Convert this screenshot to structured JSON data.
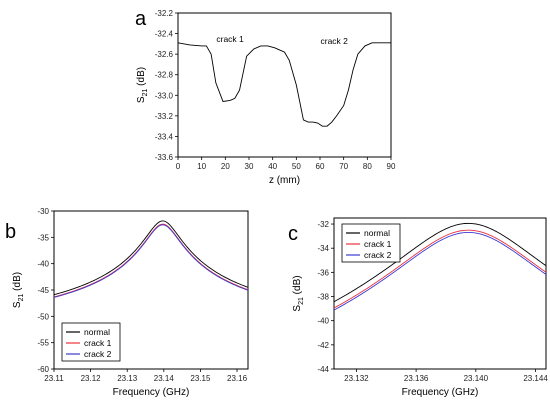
{
  "colors": {
    "normal": "#000000",
    "crack1": "#e8323c",
    "crack2": "#3b3bd6"
  },
  "chart_data": [
    {
      "id": "a",
      "type": "line",
      "panel_label": "a",
      "xlabel": "z (mm)",
      "ylabel_main": "S",
      "ylabel_sub": "21",
      "ylabel_unit": "(dB)",
      "xlim": [
        0,
        90
      ],
      "ylim": [
        -33.6,
        -32.2
      ],
      "xticks": [
        0,
        10,
        20,
        30,
        40,
        50,
        60,
        70,
        80,
        90
      ],
      "yticks": [
        -32.2,
        -32.4,
        -32.6,
        -32.8,
        -33.0,
        -33.2,
        -33.4,
        -33.6
      ],
      "ytick_labels": [
        "-32.2",
        "-32.4",
        "-32.6",
        "-32.8",
        "-33.0",
        "-33.2",
        "-33.4",
        "-33.6"
      ],
      "annotations": [
        {
          "text": "crack 1",
          "x": 22,
          "y": -32.48
        },
        {
          "text": "crack 2",
          "x": 66,
          "y": -32.5
        }
      ],
      "series": [
        {
          "color": "#000000",
          "x": [
            0,
            5,
            10,
            12,
            14,
            16,
            19,
            22,
            24,
            26,
            29,
            32,
            35,
            38,
            41,
            43,
            45,
            47,
            50,
            53,
            55,
            57,
            59,
            61,
            63,
            65,
            67,
            70,
            72,
            74,
            76,
            79,
            82,
            85,
            88,
            90
          ],
          "y": [
            -32.49,
            -32.51,
            -32.52,
            -32.52,
            -32.6,
            -32.88,
            -33.06,
            -33.05,
            -33.03,
            -32.95,
            -32.62,
            -32.55,
            -32.52,
            -32.52,
            -32.54,
            -32.56,
            -32.58,
            -32.66,
            -32.9,
            -33.24,
            -33.26,
            -33.26,
            -33.27,
            -33.3,
            -33.3,
            -33.26,
            -33.2,
            -33.1,
            -32.95,
            -32.75,
            -32.6,
            -32.52,
            -32.49,
            -32.49,
            -32.49,
            -32.49
          ]
        }
      ]
    },
    {
      "id": "b",
      "type": "line",
      "panel_label": "b",
      "xlabel": "Frequency (GHz)",
      "ylabel_main": "S",
      "ylabel_sub": "21",
      "ylabel_unit": "(dB)",
      "xlim": [
        23.11,
        23.163
      ],
      "ylim": [
        -60,
        -30
      ],
      "xticks": [
        23.11,
        23.12,
        23.13,
        23.14,
        23.15,
        23.16
      ],
      "xtick_labels": [
        "23.11",
        "23.12",
        "23.13",
        "23.14",
        "23.15",
        "23.16"
      ],
      "yticks": [
        -30,
        -35,
        -40,
        -45,
        -50,
        -55,
        -60
      ],
      "ytick_labels": [
        "-30",
        "-35",
        "-40",
        "-45",
        "-50",
        "-55",
        "-60"
      ],
      "legend_position": "bottom-left",
      "series": [
        {
          "name": "normal",
          "color": "#000000",
          "peak": -32.5,
          "f0": 23.1397
        },
        {
          "name": "crack 1",
          "color": "#e8323c",
          "peak": -33.15,
          "f0": 23.1397
        },
        {
          "name": "crack 2",
          "color": "#3b3bd6",
          "peak": -33.3,
          "f0": 23.1397
        }
      ]
    },
    {
      "id": "c",
      "type": "line",
      "panel_label": "c",
      "xlabel": "Frequency (GHz)",
      "ylabel_main": "S",
      "ylabel_sub": "21",
      "ylabel_unit": "(dB)",
      "xlim": [
        23.1305,
        23.1447
      ],
      "ylim": [
        -44,
        -31.5
      ],
      "xticks": [
        23.132,
        23.136,
        23.14,
        23.144
      ],
      "xtick_labels": [
        "23.132",
        "23.136",
        "23.140",
        "23.144"
      ],
      "yticks": [
        -32,
        -34,
        -36,
        -38,
        -40,
        -42,
        -44
      ],
      "ytick_labels": [
        "-32",
        "-34",
        "-36",
        "-38",
        "-40",
        "-42",
        "-44"
      ],
      "legend_position": "top-left",
      "series": [
        {
          "name": "normal",
          "color": "#000000",
          "peak": -32.5,
          "f0": 23.1395
        },
        {
          "name": "crack 1",
          "color": "#e8323c",
          "peak": -33.1,
          "f0": 23.1395
        },
        {
          "name": "crack 2",
          "color": "#3b3bd6",
          "peak": -33.3,
          "f0": 23.1395
        }
      ]
    }
  ]
}
